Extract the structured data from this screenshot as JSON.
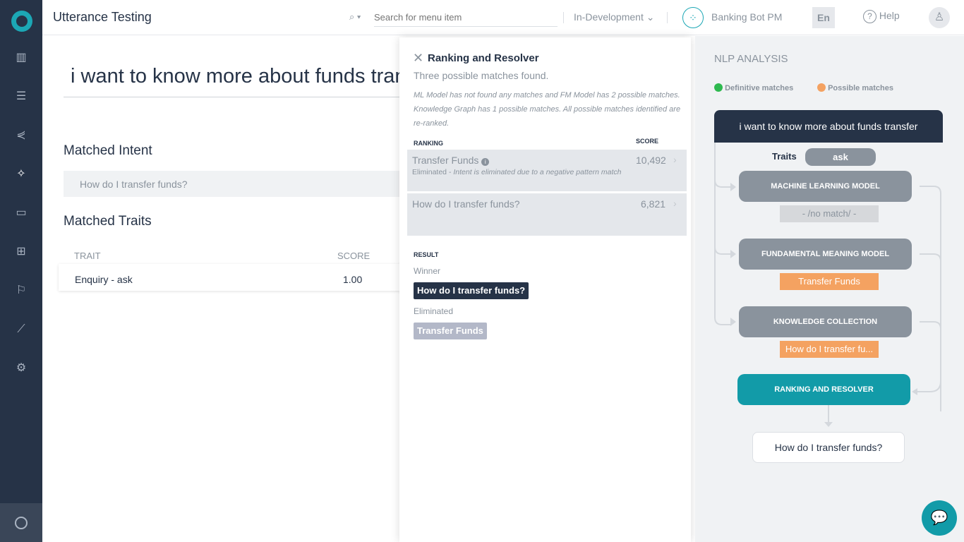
{
  "header": {
    "title": "Utterance Testing",
    "search_placeholder": "Search for menu item",
    "environment": "In-Development",
    "bot_name": "Banking Bot PM",
    "language": "En",
    "help": "Help"
  },
  "sidebar": {
    "items": [
      "analytics",
      "bot-builder",
      "flows",
      "utterance-testing",
      "conversations",
      "apps",
      "deploy",
      "metrics",
      "settings"
    ]
  },
  "main": {
    "utterance": "i want to know more about funds transfer",
    "matched_intent_heading": "Matched Intent",
    "matched_intent": "How do I transfer funds?",
    "matched_traits_heading": "Matched Traits",
    "trait_col": "TRAIT",
    "score_col": "SCORE",
    "traits": [
      {
        "trait": "Enquiry - ask",
        "score": "1.00"
      }
    ]
  },
  "panel": {
    "title": "Ranking and Resolver",
    "subtitle": "Three possible matches found.",
    "description": "ML Model has not found any matches and FM Model has 2 possible matches. Knowledge Graph has 1 possible matches. All possible matches identified are re-ranked.",
    "ranking_col": "RANKING",
    "score_col": "SCORE",
    "rows": [
      {
        "name": "Transfer Funds",
        "score": "10,492",
        "status": "Eliminated - ",
        "reason": "Intent is eliminated due to a negative pattern match"
      },
      {
        "name": "How do I transfer funds?",
        "score": "6,821"
      }
    ],
    "result_heading": "RESULT",
    "winner_label": "Winner",
    "winner": "How do I transfer funds?",
    "eliminated_label": "Eliminated",
    "eliminated": "Transfer Funds"
  },
  "nlp": {
    "heading": "NLP ANALYSIS",
    "legend": [
      {
        "label": "Definitive matches",
        "color": "#2eb94f"
      },
      {
        "label": "Possible matches",
        "color": "#f4a261"
      }
    ],
    "utterance": "i want to know more about funds transfer",
    "traits_label": "Traits",
    "trait": "ask",
    "ml": "MACHINE LEARNING MODEL",
    "ml_result": "- /no match/ -",
    "fm": "FUNDAMENTAL MEANING MODEL",
    "fm_result": "Transfer Funds",
    "kc": "KNOWLEDGE COLLECTION",
    "kc_result": "How do I transfer fu...",
    "rr": "RANKING AND RESOLVER",
    "final": "How do I transfer funds?"
  }
}
